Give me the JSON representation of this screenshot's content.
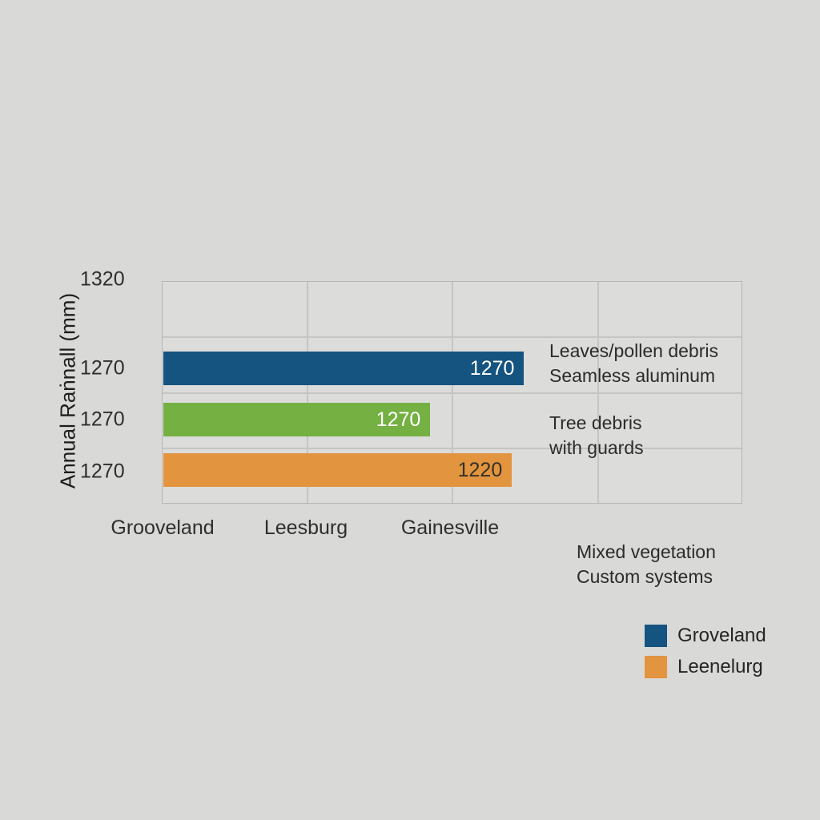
{
  "chart_data": {
    "type": "bar",
    "orientation": "horizontal",
    "title": "",
    "xlabel": "",
    "ylabel": "Annual Raṅnall (mm)",
    "grid": true,
    "background_color": "#d9d9d7",
    "y_ticks": [
      "1320",
      "1270",
      "1270",
      "1270"
    ],
    "categories": [
      "Grooveland",
      "Leesburg",
      "Gainesville"
    ],
    "rows": [
      {
        "value": 1270,
        "value_label": "1270",
        "bar_color": "#155380",
        "value_label_color": "#ffffff",
        "length_pct": 62.3
      },
      {
        "value": 1270,
        "value_label": "1270",
        "bar_color": "#74b042",
        "value_label_color": "#ffffff",
        "length_pct": 46.1
      },
      {
        "value": 1220,
        "value_label": "1220",
        "bar_color": "#e3943e",
        "value_label_color": "#32312a",
        "length_pct": 60.2
      }
    ],
    "annotations": [
      {
        "lines": [
          "Leaves/pollen debris",
          "Seamless aluminum"
        ]
      },
      {
        "lines": [
          "Tree debris",
          "with guards"
        ]
      },
      {
        "lines": [
          "Mixed vegetation",
          "Custom systems"
        ]
      }
    ],
    "legend": [
      {
        "label": "Groveland",
        "color": "#155380"
      },
      {
        "label": "Leenelurg",
        "color": "#e3943e"
      }
    ],
    "axis_colors": {
      "gridline": "#c5c5c3",
      "border": "#b6b6b4",
      "text": "#2e2e2b"
    }
  }
}
